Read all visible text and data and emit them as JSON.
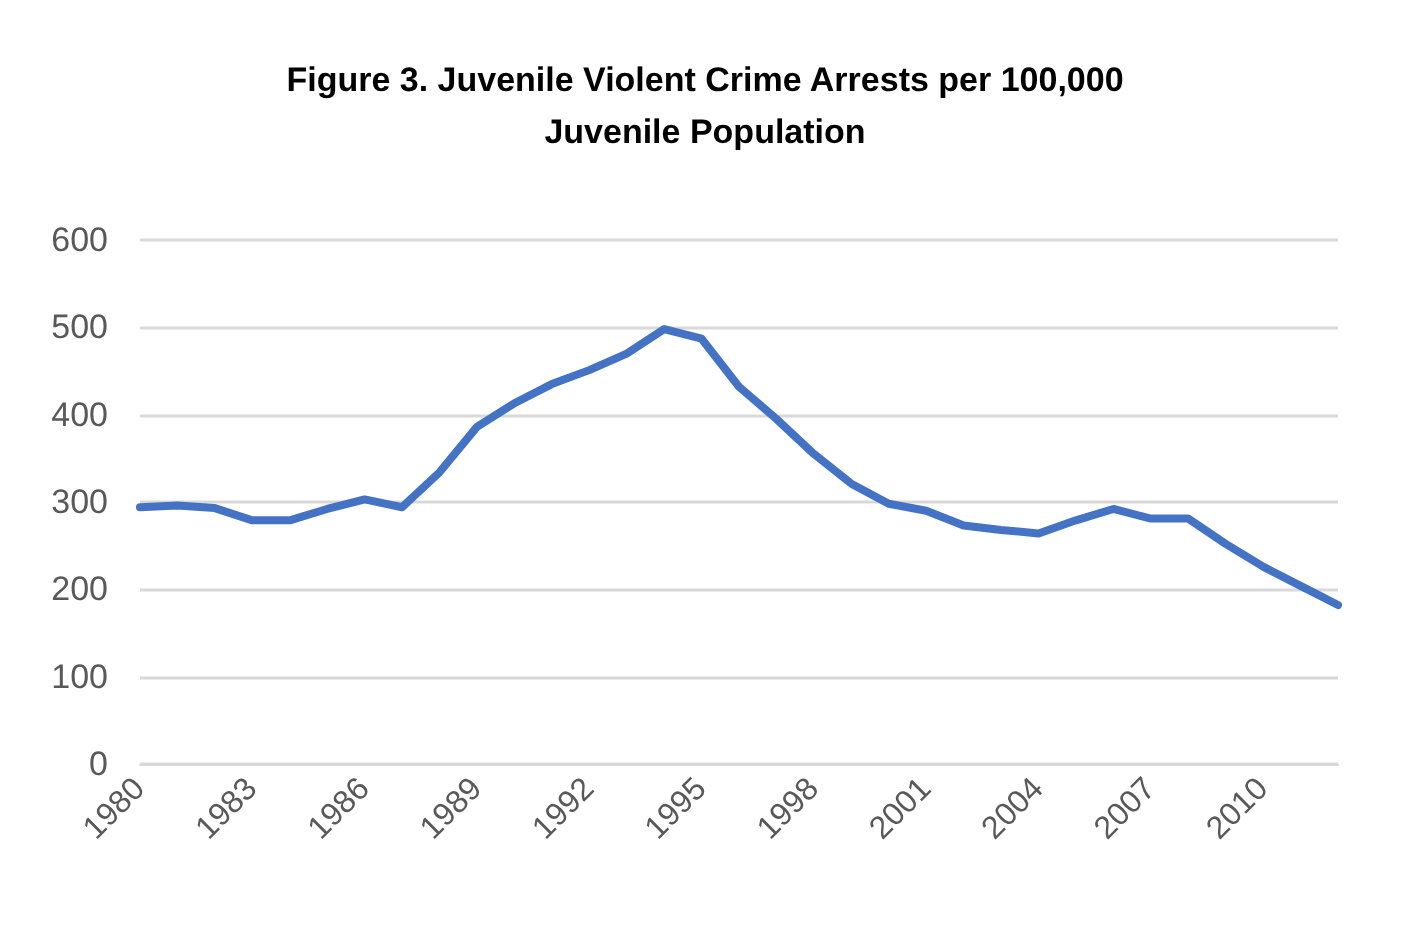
{
  "chart_data": {
    "type": "line",
    "title": "Figure 3. Juvenile Violent Crime Arrests per 100,000\nJuvenile Population",
    "categories": [
      "1980",
      null,
      null,
      "1983",
      null,
      null,
      "1986",
      null,
      null,
      "1989",
      null,
      null,
      "1992",
      null,
      null,
      "1995",
      null,
      null,
      "1998",
      null,
      null,
      "2001",
      null,
      null,
      "2004",
      null,
      null,
      "2007",
      null,
      null,
      "2010",
      null,
      null
    ],
    "series": [
      {
        "color": "#4472c4",
        "values": [
          294,
          296,
          293,
          279,
          279,
          292,
          303,
          294,
          334,
          386,
          413,
          435,
          451,
          470,
          498,
          487,
          432,
          395,
          355,
          321,
          298,
          290,
          273,
          268,
          264,
          279,
          292,
          281,
          281,
          252,
          226,
          204,
          182
        ]
      }
    ],
    "ylim": [
      0,
      600
    ],
    "yticks": [
      0,
      100,
      200,
      300,
      400,
      500,
      600
    ],
    "grid": "y",
    "marker": "none",
    "line_style": "solid"
  }
}
